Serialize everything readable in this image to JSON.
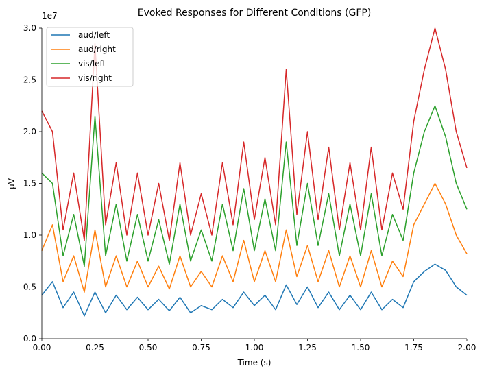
{
  "chart_data": {
    "type": "line",
    "title": "Evoked Responses for Different Conditions (GFP)",
    "xlabel": "Time (s)",
    "ylabel": "µV",
    "y_offset_label": "1e7",
    "xlim": [
      0.0,
      2.0
    ],
    "ylim": [
      0.0,
      3.0
    ],
    "x_ticks": [
      "0.00",
      "0.25",
      "0.50",
      "0.75",
      "1.00",
      "1.25",
      "1.50",
      "1.75",
      "2.00"
    ],
    "y_ticks": [
      "0.0",
      "0.5",
      "1.0",
      "1.5",
      "2.0",
      "2.5",
      "3.0"
    ],
    "grid": false,
    "legend_position": "top-left",
    "x": [
      0.0,
      0.05,
      0.1,
      0.15,
      0.2,
      0.25,
      0.3,
      0.35,
      0.4,
      0.45,
      0.5,
      0.55,
      0.6,
      0.65,
      0.7,
      0.75,
      0.8,
      0.85,
      0.9,
      0.95,
      1.0,
      1.05,
      1.1,
      1.15,
      1.2,
      1.25,
      1.3,
      1.35,
      1.4,
      1.45,
      1.5,
      1.55,
      1.6,
      1.65,
      1.7,
      1.75,
      1.8,
      1.85,
      1.9,
      1.95,
      2.0
    ],
    "series": [
      {
        "name": "aud/left",
        "color": "#1f77b4",
        "values": [
          0.42,
          0.55,
          0.3,
          0.45,
          0.22,
          0.45,
          0.25,
          0.42,
          0.28,
          0.4,
          0.28,
          0.38,
          0.27,
          0.4,
          0.25,
          0.32,
          0.28,
          0.38,
          0.3,
          0.45,
          0.32,
          0.42,
          0.28,
          0.52,
          0.33,
          0.5,
          0.3,
          0.45,
          0.28,
          0.42,
          0.28,
          0.45,
          0.28,
          0.38,
          0.3,
          0.55,
          0.65,
          0.72,
          0.66,
          0.5,
          0.42
        ]
      },
      {
        "name": "aud/right",
        "color": "#ff7f0e",
        "values": [
          0.85,
          1.1,
          0.55,
          0.8,
          0.45,
          1.05,
          0.5,
          0.8,
          0.5,
          0.75,
          0.5,
          0.7,
          0.48,
          0.8,
          0.5,
          0.65,
          0.5,
          0.8,
          0.55,
          0.95,
          0.55,
          0.85,
          0.55,
          1.05,
          0.6,
          0.9,
          0.55,
          0.85,
          0.5,
          0.8,
          0.5,
          0.85,
          0.5,
          0.75,
          0.6,
          1.1,
          1.3,
          1.5,
          1.3,
          1.0,
          0.82
        ]
      },
      {
        "name": "vis/left",
        "color": "#2ca02c",
        "values": [
          1.6,
          1.5,
          0.8,
          1.2,
          0.7,
          2.15,
          0.8,
          1.3,
          0.75,
          1.2,
          0.75,
          1.15,
          0.72,
          1.3,
          0.75,
          1.05,
          0.75,
          1.3,
          0.85,
          1.45,
          0.85,
          1.35,
          0.85,
          1.9,
          0.9,
          1.5,
          0.9,
          1.4,
          0.8,
          1.3,
          0.8,
          1.4,
          0.8,
          1.2,
          0.95,
          1.6,
          2.0,
          2.25,
          1.95,
          1.5,
          1.25
        ]
      },
      {
        "name": "vis/right",
        "color": "#d62728",
        "values": [
          2.2,
          2.0,
          1.05,
          1.6,
          0.95,
          2.85,
          1.1,
          1.7,
          1.0,
          1.6,
          1.0,
          1.5,
          0.95,
          1.7,
          1.0,
          1.4,
          1.0,
          1.7,
          1.1,
          1.9,
          1.15,
          1.75,
          1.1,
          2.6,
          1.2,
          2.0,
          1.15,
          1.85,
          1.05,
          1.7,
          1.05,
          1.85,
          1.05,
          1.6,
          1.25,
          2.1,
          2.6,
          3.0,
          2.6,
          2.0,
          1.65
        ]
      }
    ]
  }
}
